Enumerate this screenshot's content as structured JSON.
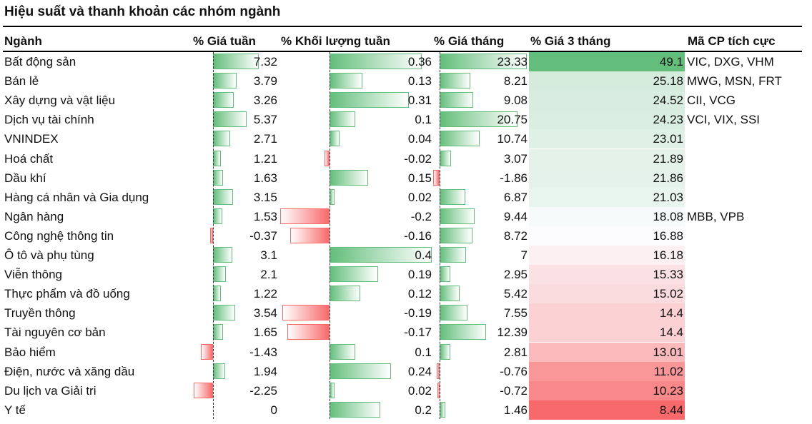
{
  "title": "Hiệu suất và thanh khoản các nhóm ngành",
  "chart_data": {
    "type": "table",
    "columns": [
      "Ngành",
      "% Giá tuần",
      "% Khối lượng tuần",
      "% Giá tháng",
      "% Giá 3 tháng",
      "Mã CP tích cực"
    ],
    "rows": [
      [
        "Bất động sản",
        7.32,
        0.36,
        23.33,
        49.1,
        "VIC, DXG, VHM"
      ],
      [
        "Bán lẻ",
        3.79,
        0.13,
        8.21,
        25.18,
        "MWG, MSN, FRT"
      ],
      [
        "Xây dựng và vật liệu",
        3.26,
        0.31,
        9.08,
        24.52,
        "CII, VCG"
      ],
      [
        "Dịch vụ tài chính",
        5.37,
        0.1,
        20.75,
        24.23,
        "VCI, VIX, SSI"
      ],
      [
        "VNINDEX",
        2.71,
        0.04,
        10.74,
        23.01,
        ""
      ],
      [
        "Hoá chất",
        1.21,
        -0.02,
        3.07,
        21.89,
        ""
      ],
      [
        "Dầu khí",
        1.63,
        0.15,
        -1.86,
        21.86,
        ""
      ],
      [
        "Hàng cá nhân và Gia dụng",
        3.15,
        0.02,
        6.87,
        21.03,
        ""
      ],
      [
        "Ngân hàng",
        1.53,
        -0.2,
        9.44,
        18.08,
        "MBB, VPB"
      ],
      [
        "Công nghệ thông tin",
        -0.37,
        -0.16,
        8.72,
        16.88,
        ""
      ],
      [
        "Ô tô và phụ tùng",
        3.1,
        0.4,
        7,
        16.18,
        ""
      ],
      [
        "Viễn thông",
        2.1,
        0.19,
        2.95,
        15.33,
        ""
      ],
      [
        "Thực phẩm và đồ uống",
        1.22,
        0.12,
        5.42,
        15.02,
        ""
      ],
      [
        "Truyền thông",
        3.54,
        -0.19,
        7.55,
        14.4,
        ""
      ],
      [
        "Tài nguyên cơ bản",
        1.65,
        -0.17,
        12.39,
        14.4,
        ""
      ],
      [
        "Bảo hiểm",
        -1.43,
        0.1,
        2.81,
        13.01,
        ""
      ],
      [
        "Điện, nước và xăng dầu",
        1.94,
        0.24,
        -0.76,
        11.02,
        ""
      ],
      [
        "Du lịch va Giải tri",
        -2.25,
        0.02,
        -0.72,
        10.23,
        ""
      ],
      [
        "Y tế",
        0,
        0.2,
        1.46,
        8.44,
        ""
      ]
    ],
    "colors": {
      "positive": "#63be7b",
      "negative": "#f8696b",
      "mid": "#fcfcff"
    }
  }
}
